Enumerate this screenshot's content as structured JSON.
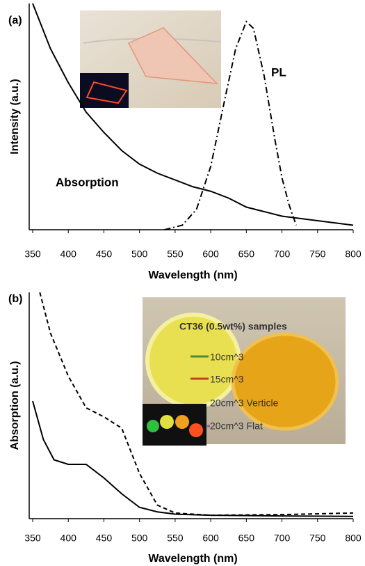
{
  "chart_data": [
    {
      "type": "line",
      "panel_label": "(a)",
      "x_label": "Wavelength (nm)",
      "y_label": "Intensity (a.u.)",
      "xlim": [
        350,
        800
      ],
      "xticks": [
        350,
        400,
        450,
        500,
        550,
        600,
        650,
        700,
        750,
        800
      ],
      "ylim": [
        0,
        1
      ],
      "annotations": [
        "Absorption",
        "PL"
      ],
      "series": [
        {
          "color": "#000000",
          "style": "solid",
          "x": [
            350,
            375,
            400,
            425,
            450,
            475,
            500,
            525,
            550,
            575,
            600,
            625,
            650,
            675,
            700,
            725,
            750,
            775,
            800
          ],
          "values": [
            1.0,
            0.8,
            0.65,
            0.52,
            0.43,
            0.35,
            0.29,
            0.25,
            0.22,
            0.19,
            0.17,
            0.14,
            0.1,
            0.08,
            0.06,
            0.05,
            0.04,
            0.03,
            0.02
          ]
        },
        {
          "color": "#000000",
          "style": "dashdot",
          "x": [
            535,
            560,
            580,
            600,
            620,
            635,
            650,
            660,
            675,
            690,
            700,
            710,
            720
          ],
          "values": [
            0,
            0.02,
            0.09,
            0.28,
            0.58,
            0.8,
            0.92,
            0.89,
            0.68,
            0.4,
            0.23,
            0.11,
            0.02
          ]
        }
      ]
    },
    {
      "type": "line",
      "panel_label": "(b)",
      "x_label": "Wavelength (nm)",
      "y_label": "Absorption (a.u.)",
      "xlim": [
        350,
        800
      ],
      "xticks": [
        350,
        400,
        450,
        500,
        550,
        600,
        650,
        700,
        750,
        800
      ],
      "ylim": [
        0,
        1
      ],
      "inset_texts": [
        "CT36 (0.5wt%) samples",
        "10cm^3",
        "15cm^3",
        "20cm^3 Verticle",
        "20cm^3 Flat"
      ],
      "series": [
        {
          "color": "#000000",
          "style": "solid",
          "x": [
            350,
            365,
            380,
            400,
            425,
            450,
            475,
            500,
            525,
            550,
            600,
            700,
            800
          ],
          "values": [
            0.52,
            0.35,
            0.26,
            0.24,
            0.24,
            0.18,
            0.11,
            0.05,
            0.03,
            0.02,
            0.015,
            0.012,
            0.01
          ]
        },
        {
          "color": "#000000",
          "style": "dashed",
          "x": [
            360,
            375,
            400,
            425,
            450,
            475,
            500,
            525,
            550,
            600,
            700,
            800
          ],
          "values": [
            1.0,
            0.82,
            0.63,
            0.49,
            0.45,
            0.4,
            0.2,
            0.06,
            0.025,
            0.015,
            0.018,
            0.025
          ]
        }
      ]
    }
  ]
}
